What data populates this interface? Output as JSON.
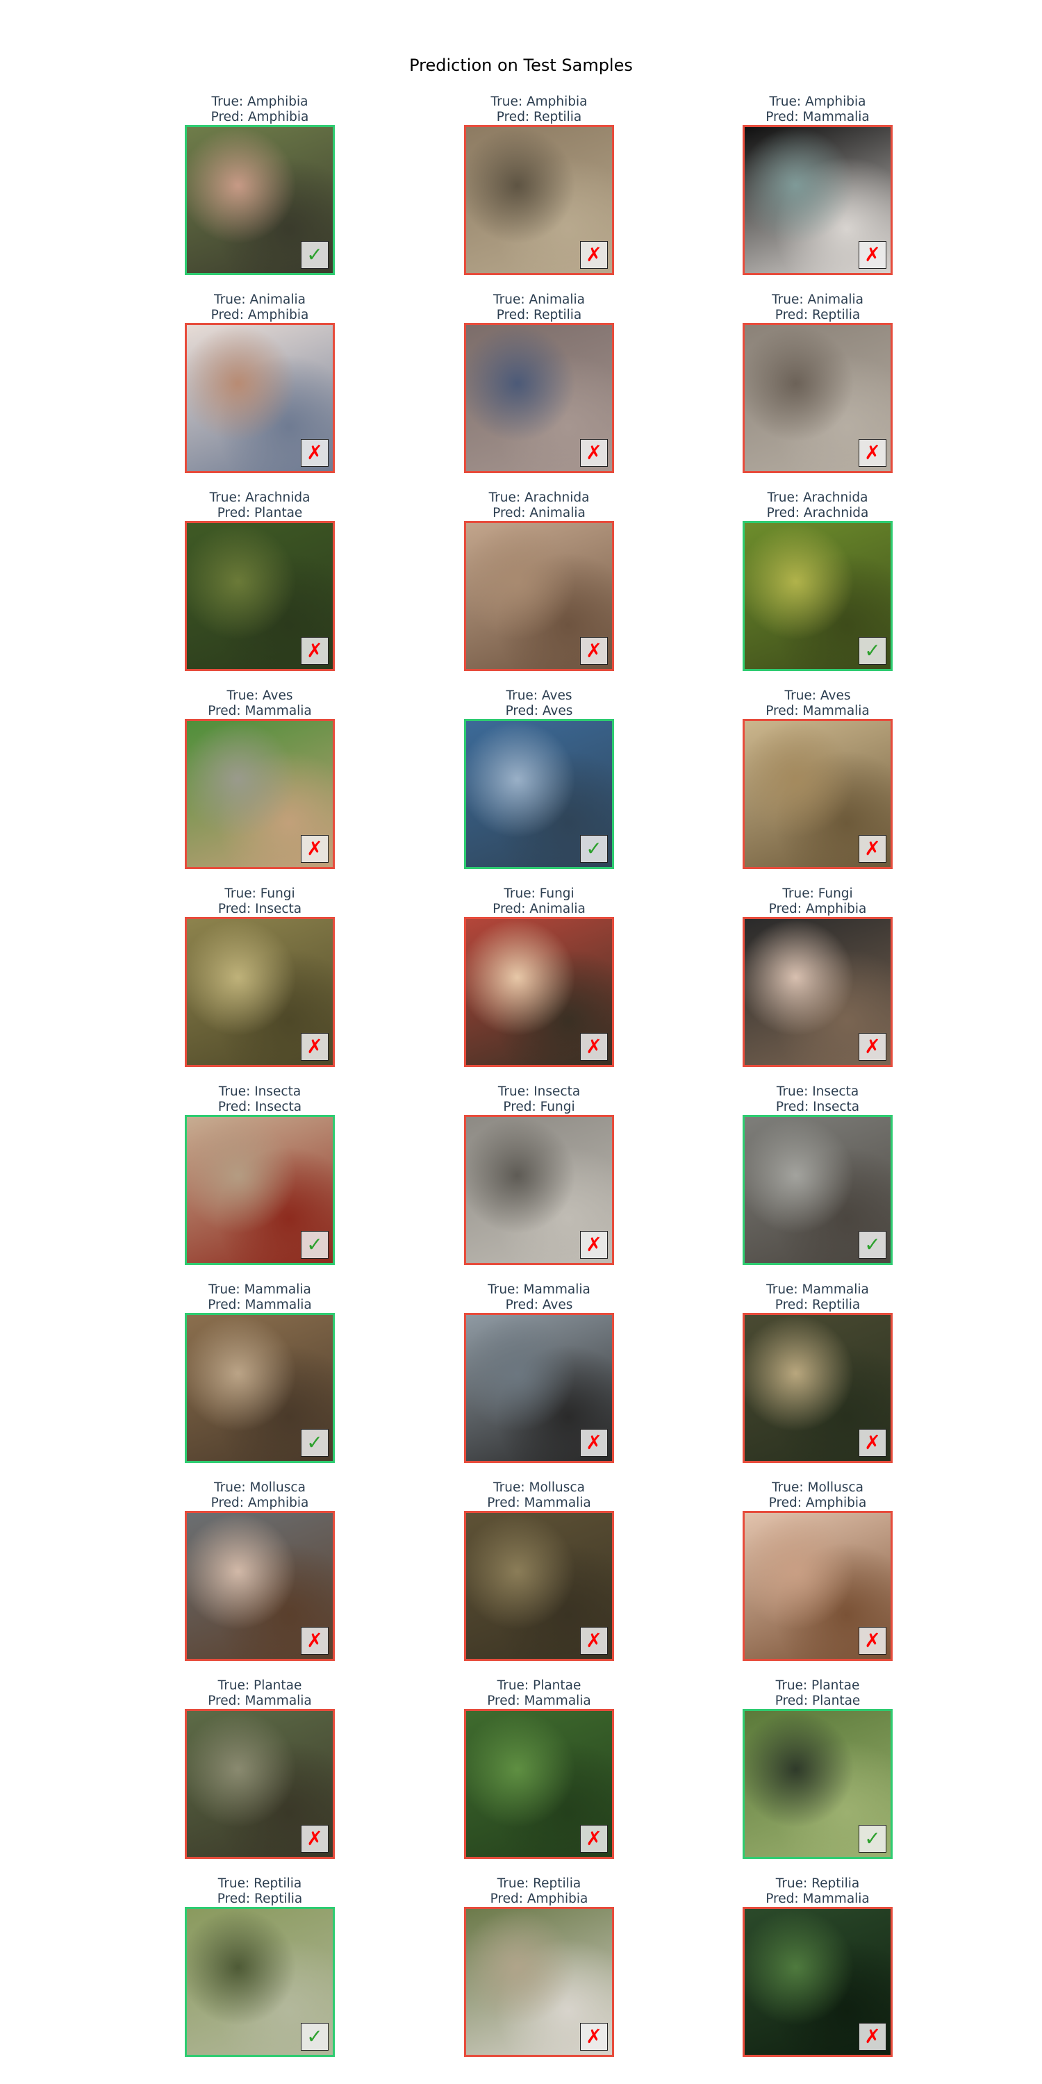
{
  "title": "Prediction on Test Samples",
  "labels": {
    "true_prefix": "True:",
    "pred_prefix": "Pred:"
  },
  "marks": {
    "correct": "✓",
    "wrong": "✗"
  },
  "colors": {
    "correct_border": "#2ecc71",
    "wrong_border": "#e74c3c",
    "correct_mark": "#2ca02c",
    "wrong_mark": "#ff0000",
    "caption_text": "#2c3e50"
  },
  "samples": [
    {
      "true": "Amphibia",
      "pred": "Amphibia",
      "correct": true,
      "palette": [
        "#6f7d4a",
        "#c79a86",
        "#3a3b2c"
      ]
    },
    {
      "true": "Amphibia",
      "pred": "Reptilia",
      "correct": false,
      "palette": [
        "#8d7b62",
        "#5e5443",
        "#b8a98e"
      ]
    },
    {
      "true": "Amphibia",
      "pred": "Mammalia",
      "correct": false,
      "palette": [
        "#101010",
        "#7f9a98",
        "#d8d4d0"
      ]
    },
    {
      "true": "Animalia",
      "pred": "Amphibia",
      "correct": false,
      "palette": [
        "#e7dcd6",
        "#b88b73",
        "#6f7b92"
      ]
    },
    {
      "true": "Animalia",
      "pred": "Reptilia",
      "correct": false,
      "palette": [
        "#7c6d6a",
        "#4c5a78",
        "#a69690"
      ]
    },
    {
      "true": "Animalia",
      "pred": "Reptilia",
      "correct": false,
      "palette": [
        "#8b8278",
        "#6c6258",
        "#b6aea3"
      ]
    },
    {
      "true": "Arachnida",
      "pred": "Plantae",
      "correct": false,
      "palette": [
        "#3f5a25",
        "#6b7a38",
        "#2b3a1c"
      ]
    },
    {
      "true": "Arachnida",
      "pred": "Animalia",
      "correct": false,
      "palette": [
        "#c2a58c",
        "#a88a70",
        "#6e5440"
      ]
    },
    {
      "true": "Arachnida",
      "pred": "Arachnida",
      "correct": true,
      "palette": [
        "#6d8d2c",
        "#b1b34b",
        "#3d4b1a"
      ]
    },
    {
      "true": "Aves",
      "pred": "Mammalia",
      "correct": false,
      "palette": [
        "#4f8f3a",
        "#9a9a8c",
        "#c2a07a"
      ]
    },
    {
      "true": "Aves",
      "pred": "Aves",
      "correct": true,
      "palette": [
        "#3c6a98",
        "#9ab0c7",
        "#2f4458"
      ]
    },
    {
      "true": "Aves",
      "pred": "Mammalia",
      "correct": false,
      "palette": [
        "#cbb68d",
        "#a48a5e",
        "#6d5a3a"
      ]
    },
    {
      "true": "Fungi",
      "pred": "Insecta",
      "correct": false,
      "palette": [
        "#8d834d",
        "#bfb27a",
        "#4e4828"
      ]
    },
    {
      "true": "Fungi",
      "pred": "Animalia",
      "correct": false,
      "palette": [
        "#b4463a",
        "#e7c8a8",
        "#3a3024"
      ]
    },
    {
      "true": "Fungi",
      "pred": "Amphibia",
      "correct": false,
      "palette": [
        "#2a2a2a",
        "#d8c0b0",
        "#7a6552"
      ]
    },
    {
      "true": "Insecta",
      "pred": "Insecta",
      "correct": true,
      "palette": [
        "#c7ad92",
        "#b49c82",
        "#8d2b1e"
      ]
    },
    {
      "true": "Insecta",
      "pred": "Fungi",
      "correct": false,
      "palette": [
        "#8d8a84",
        "#5e5b55",
        "#c0bcb4"
      ]
    },
    {
      "true": "Insecta",
      "pred": "Insecta",
      "correct": true,
      "palette": [
        "#7e7e7a",
        "#a3a39e",
        "#4b4640"
      ]
    },
    {
      "true": "Mammalia",
      "pred": "Mammalia",
      "correct": true,
      "palette": [
        "#8b6f4e",
        "#bba487",
        "#4a3a2a"
      ]
    },
    {
      "true": "Mammalia",
      "pred": "Aves",
      "correct": false,
      "palette": [
        "#8f9aa3",
        "#6c7780",
        "#2a2a2a"
      ]
    },
    {
      "true": "Mammalia",
      "pred": "Reptilia",
      "correct": false,
      "palette": [
        "#4a4a32",
        "#b9a77e",
        "#28301e"
      ]
    },
    {
      "true": "Mollusca",
      "pred": "Amphibia",
      "correct": false,
      "palette": [
        "#6b6f72",
        "#d2b9a8",
        "#5a3f2c"
      ]
    },
    {
      "true": "Mollusca",
      "pred": "Mammalia",
      "correct": false,
      "palette": [
        "#5e5236",
        "#8b7d58",
        "#3a3323"
      ]
    },
    {
      "true": "Mollusca",
      "pred": "Amphibia",
      "correct": false,
      "palette": [
        "#e2c3ad",
        "#c99f84",
        "#7a5236"
      ]
    },
    {
      "true": "Plantae",
      "pred": "Mammalia",
      "correct": false,
      "palette": [
        "#5d6b47",
        "#8a8a70",
        "#3a3828"
      ]
    },
    {
      "true": "Plantae",
      "pred": "Mammalia",
      "correct": false,
      "palette": [
        "#3f6b2e",
        "#5f8f42",
        "#24401c"
      ]
    },
    {
      "true": "Plantae",
      "pred": "Plantae",
      "correct": true,
      "palette": [
        "#5b7a3a",
        "#2f3a2a",
        "#9cb070"
      ]
    },
    {
      "true": "Reptilia",
      "pred": "Reptilia",
      "correct": true,
      "palette": [
        "#8a9a5e",
        "#4e5a36",
        "#b3b89c"
      ]
    },
    {
      "true": "Reptilia",
      "pred": "Amphibia",
      "correct": false,
      "palette": [
        "#6c7a4a",
        "#b0a48a",
        "#d8d4cc"
      ]
    },
    {
      "true": "Reptilia",
      "pred": "Mammalia",
      "correct": false,
      "palette": [
        "#2b4a2a",
        "#4f7a3e",
        "#0f1f10"
      ]
    }
  ]
}
